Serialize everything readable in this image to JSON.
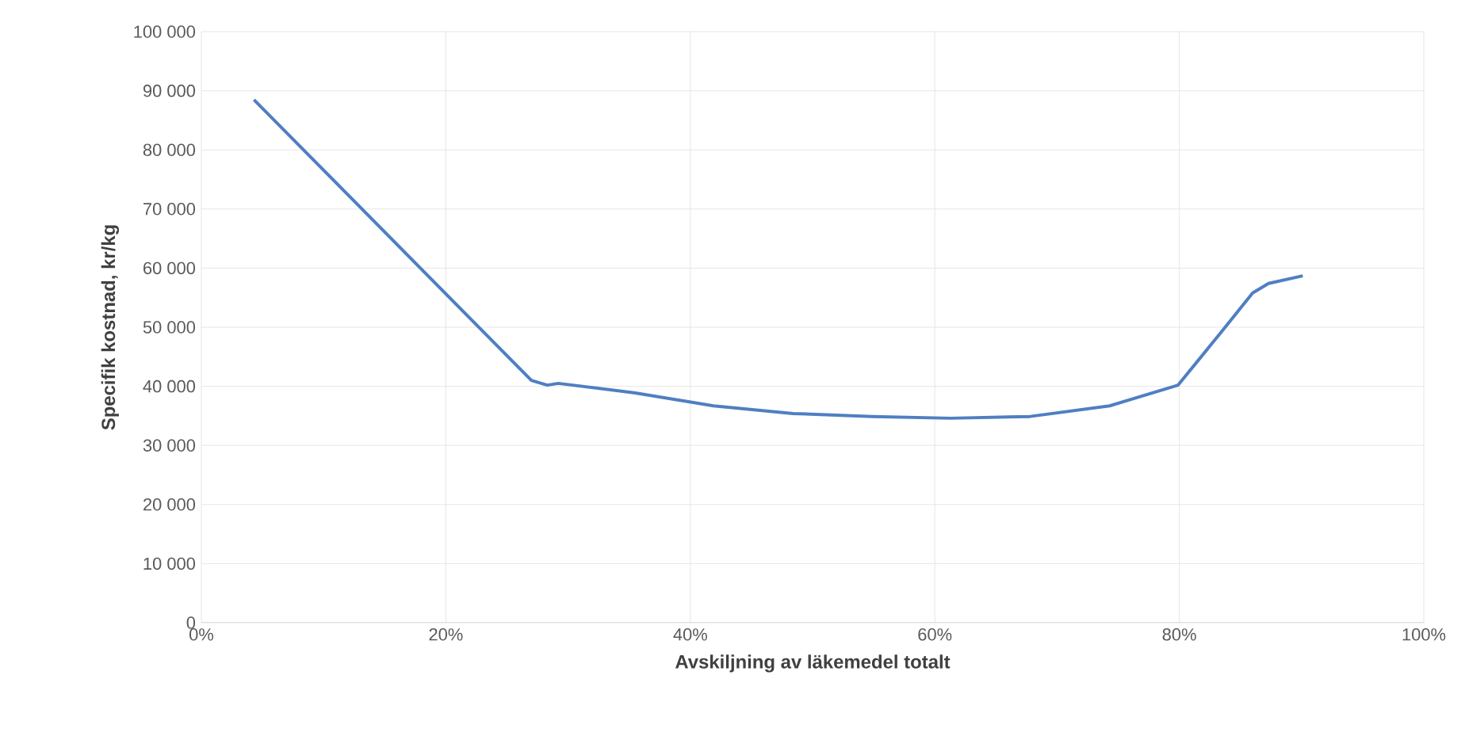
{
  "chart_data": {
    "type": "line",
    "xlabel": "Avskiljning av läkemedel totalt",
    "ylabel": "Specifik kostnad, kr/kg",
    "x": [
      4.3,
      27.0,
      28.3,
      29.2,
      35.4,
      41.9,
      48.4,
      54.9,
      61.3,
      67.8,
      74.3,
      79.9,
      83.4,
      86.0,
      87.3,
      90.1
    ],
    "series": [
      {
        "color": "#4f7fc2",
        "values": [
          88500,
          41000,
          40200,
          40500,
          38900,
          36700,
          35400,
          34900,
          34600,
          34900,
          36700,
          40200,
          49100,
          55800,
          57400,
          58700
        ]
      }
    ],
    "xlim": [
      0,
      100
    ],
    "ylim": [
      0,
      100000
    ],
    "xticks": [
      {
        "value": 0,
        "label": "0%"
      },
      {
        "value": 20,
        "label": "20%"
      },
      {
        "value": 40,
        "label": "40%"
      },
      {
        "value": 60,
        "label": "60%"
      },
      {
        "value": 80,
        "label": "80%"
      },
      {
        "value": 100,
        "label": "100%"
      }
    ],
    "yticks": [
      0,
      {
        "value": 10000,
        "label": "10 000"
      },
      {
        "value": 20000,
        "label": "20 000"
      },
      {
        "value": 30000,
        "label": "30 000"
      },
      {
        "value": 40000,
        "label": "40 000"
      },
      {
        "value": 50000,
        "label": "50 000"
      },
      {
        "value": 60000,
        "label": "60 000"
      },
      {
        "value": 70000,
        "label": "70 000"
      },
      {
        "value": 80000,
        "label": "80 000"
      },
      {
        "value": 90000,
        "label": "90 000"
      },
      {
        "value": 100000,
        "label": "100 000"
      }
    ],
    "grid": true,
    "marker": "none",
    "line_style": "solid"
  }
}
